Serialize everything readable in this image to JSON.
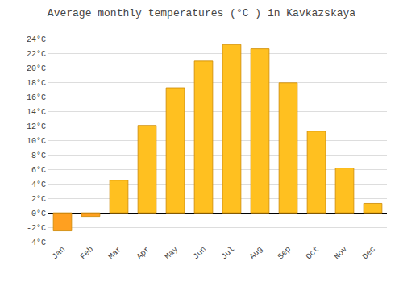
{
  "chart_data": {
    "type": "bar",
    "title": "Average monthly temperatures (°C ) in Kavkazskaya",
    "categories": [
      "Jan",
      "Feb",
      "Mar",
      "Apr",
      "May",
      "Jun",
      "Jul",
      "Aug",
      "Sep",
      "Oct",
      "Nov",
      "Dec"
    ],
    "values": [
      -2.5,
      -0.5,
      4.5,
      12.1,
      17.3,
      21.0,
      23.3,
      22.7,
      18.0,
      11.3,
      6.2,
      1.3
    ],
    "colors": [
      "#FFA020",
      "#FFA020",
      "#FFC020",
      "#FFC020",
      "#FFC020",
      "#FFC020",
      "#FFC020",
      "#FFC020",
      "#FFC020",
      "#FFC020",
      "#FFC020",
      "#FFC020"
    ],
    "ylim": [
      -4,
      25
    ],
    "yticks": [
      {
        "value": -4,
        "label": "-4°C"
      },
      {
        "value": -2,
        "label": "-2°C"
      },
      {
        "value": 0,
        "label": "0°C"
      },
      {
        "value": 2,
        "label": "2°C"
      },
      {
        "value": 4,
        "label": "4°C"
      },
      {
        "value": 6,
        "label": "6°C"
      },
      {
        "value": 8,
        "label": "8°C"
      },
      {
        "value": 10,
        "label": "10°C"
      },
      {
        "value": 12,
        "label": "12°C"
      },
      {
        "value": 14,
        "label": "14°C"
      },
      {
        "value": 16,
        "label": "16°C"
      },
      {
        "value": 18,
        "label": "18°C"
      },
      {
        "value": 20,
        "label": "20°C"
      },
      {
        "value": 22,
        "label": "22°C"
      },
      {
        "value": 24,
        "label": "24°C"
      }
    ],
    "grid": true
  }
}
